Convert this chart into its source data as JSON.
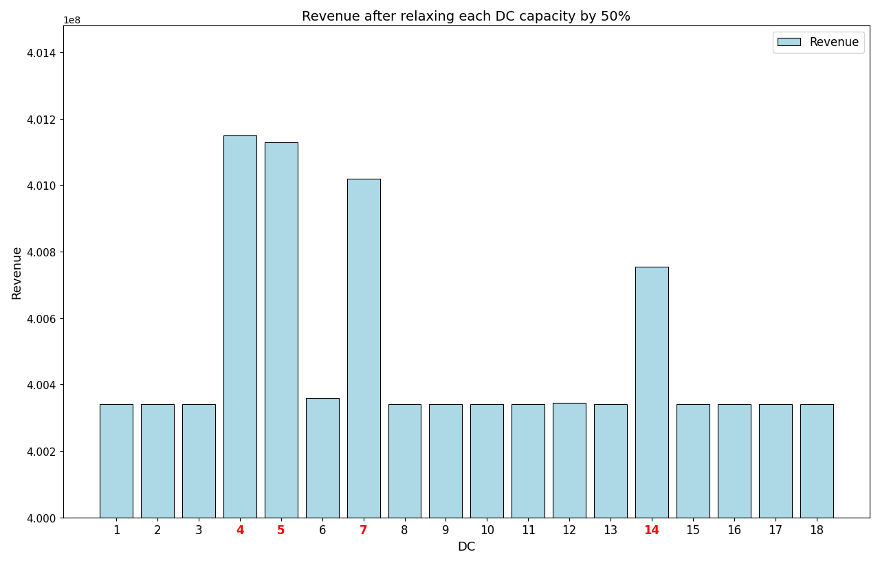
{
  "title": "Revenue after relaxing each DC capacity by 50%",
  "xlabel": "DC",
  "ylabel": "Revenue",
  "bar_color": "#add8e6",
  "bar_edgecolor": "#000000",
  "legend_label": "Revenue",
  "highlight_color": "red",
  "highlight_dcs": [
    4,
    5,
    7,
    14
  ],
  "dcs": [
    1,
    2,
    3,
    4,
    5,
    6,
    7,
    8,
    9,
    10,
    11,
    12,
    13,
    14,
    15,
    16,
    17,
    18
  ],
  "revenues": [
    400340000,
    400340000,
    400340000,
    401150000,
    401130000,
    400360000,
    401020000,
    400340000,
    400340000,
    400340000,
    400340000,
    400345000,
    400340000,
    400755000,
    400340000,
    400340000,
    400340000,
    400340000
  ],
  "ylim": [
    400000000,
    401480000
  ],
  "figsize": [
    12.8,
    8.2
  ],
  "dpi": 100
}
